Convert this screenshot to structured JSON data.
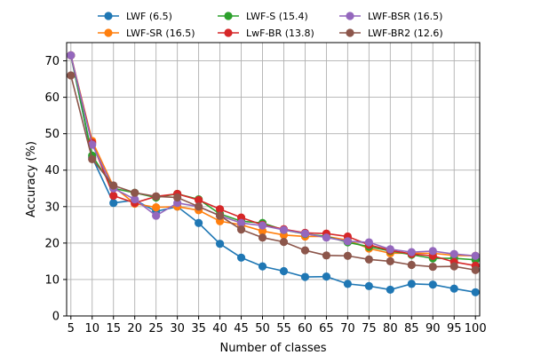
{
  "chart_data": {
    "type": "line",
    "title": "",
    "xlabel": "Number of classes",
    "ylabel": "Accuracy (%)",
    "x": [
      5,
      10,
      15,
      20,
      25,
      30,
      35,
      40,
      45,
      50,
      55,
      60,
      65,
      70,
      75,
      80,
      85,
      90,
      95,
      100
    ],
    "xticks": [
      "5",
      "10",
      "15",
      "20",
      "25",
      "30",
      "35",
      "40",
      "45",
      "50",
      "55",
      "60",
      "65",
      "70",
      "75",
      "80",
      "85",
      "90",
      "95",
      "100"
    ],
    "xlim": [
      4,
      101
    ],
    "yticks": [
      "0",
      "10",
      "20",
      "30",
      "40",
      "50",
      "60",
      "70"
    ],
    "ytick_values": [
      0,
      10,
      20,
      30,
      40,
      50,
      60,
      70
    ],
    "ylim": [
      0,
      75
    ],
    "grid": true,
    "legend_position": "top, above plot",
    "series": [
      {
        "name": "LWF (6.5)",
        "color": "#1f77b4",
        "values": [
          71.5,
          43.5,
          31.0,
          31.8,
          28.7,
          30.0,
          25.5,
          19.8,
          16.0,
          13.6,
          12.3,
          10.7,
          10.8,
          8.8,
          8.2,
          7.2,
          8.8,
          8.6,
          7.5,
          6.5
        ]
      },
      {
        "name": "LWF-SR (16.5)",
        "color": "#ff7f0e",
        "values": [
          71.5,
          48.0,
          35.5,
          30.8,
          29.8,
          30.0,
          29.0,
          26.0,
          25.0,
          23.3,
          22.2,
          21.8,
          21.8,
          20.8,
          18.5,
          17.2,
          17.2,
          17.2,
          16.6,
          16.5
        ]
      },
      {
        "name": "LWF-S (15.4)",
        "color": "#2ca02c",
        "values": [
          71.5,
          44.0,
          35.0,
          33.8,
          32.5,
          33.5,
          32.0,
          28.0,
          26.0,
          25.5,
          23.6,
          22.5,
          21.8,
          20.2,
          19.0,
          17.8,
          16.8,
          15.8,
          15.8,
          15.4
        ]
      },
      {
        "name": "LwF-BR (13.8)",
        "color": "#d62728",
        "values": [
          71.5,
          47.5,
          33.0,
          31.0,
          32.8,
          33.5,
          31.8,
          29.3,
          27.0,
          25.0,
          23.8,
          22.8,
          22.6,
          21.8,
          19.5,
          18.0,
          17.0,
          16.5,
          14.8,
          13.8
        ]
      },
      {
        "name": "LWF-BSR (16.5)",
        "color": "#9467bd",
        "values": [
          71.5,
          47.0,
          35.0,
          32.0,
          27.5,
          31.0,
          30.0,
          27.5,
          25.5,
          24.8,
          23.6,
          22.6,
          21.5,
          20.5,
          20.2,
          18.3,
          17.5,
          17.8,
          17.0,
          16.5
        ]
      },
      {
        "name": "LWF-BR2 (12.6)",
        "color": "#8c564b",
        "values": [
          66.0,
          43.0,
          35.8,
          33.8,
          32.8,
          32.5,
          30.0,
          27.5,
          23.7,
          21.5,
          20.3,
          18.0,
          16.6,
          16.5,
          15.5,
          15.0,
          14.0,
          13.5,
          13.6,
          12.6
        ]
      }
    ]
  }
}
